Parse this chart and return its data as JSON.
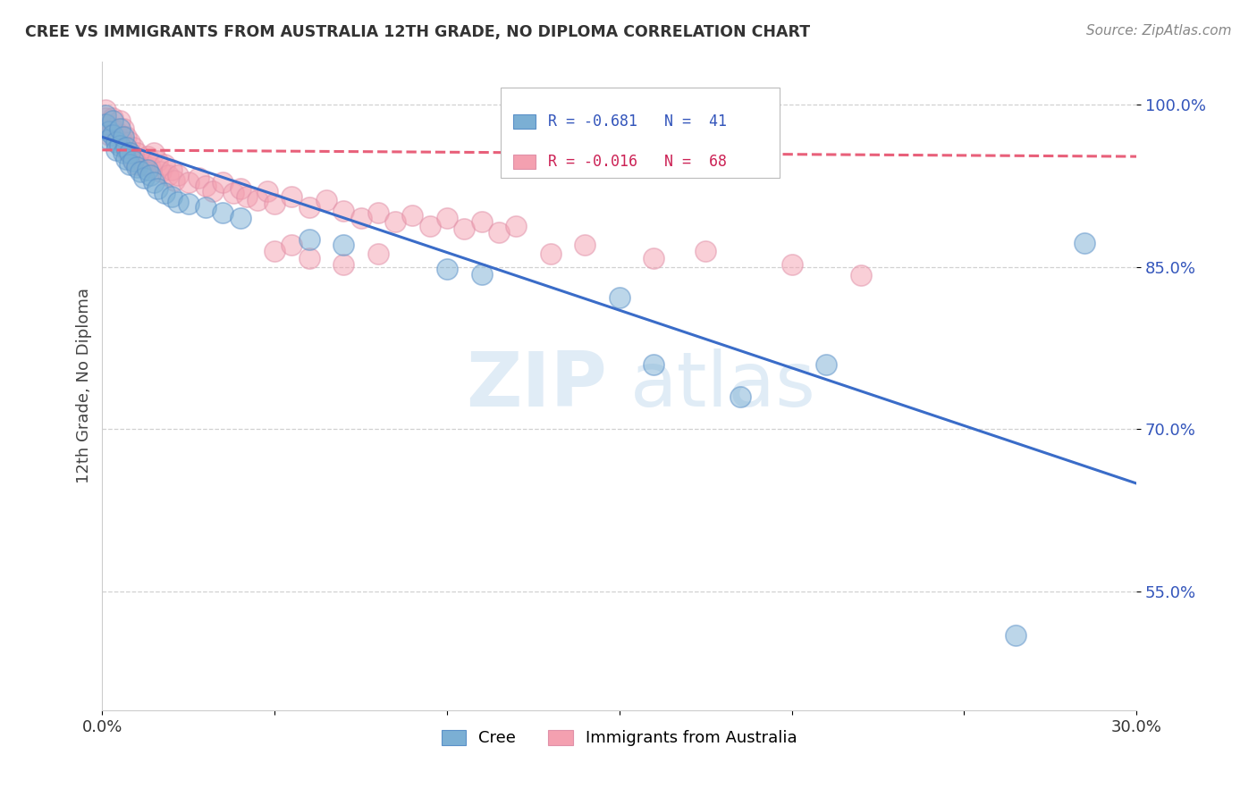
{
  "title": "CREE VS IMMIGRANTS FROM AUSTRALIA 12TH GRADE, NO DIPLOMA CORRELATION CHART",
  "source": "Source: ZipAtlas.com",
  "ylabel": "12th Grade, No Diploma",
  "x_min": 0.0,
  "x_max": 0.3,
  "y_min": 0.44,
  "y_max": 1.04,
  "x_ticks": [
    0.0,
    0.05,
    0.1,
    0.15,
    0.2,
    0.25,
    0.3
  ],
  "y_ticks": [
    0.55,
    0.7,
    0.85,
    1.0
  ],
  "y_tick_labels": [
    "55.0%",
    "70.0%",
    "85.0%",
    "100.0%"
  ],
  "blue_color": "#7BAFD4",
  "pink_color": "#F4A0B0",
  "blue_line_color": "#3A6CC8",
  "pink_line_color": "#E8607A",
  "blue_trend_x": [
    0.0,
    0.3
  ],
  "blue_trend_y": [
    0.97,
    0.65
  ],
  "pink_trend_x": [
    0.0,
    0.3
  ],
  "pink_trend_y": [
    0.958,
    0.952
  ],
  "blue_points": [
    [
      0.001,
      0.99
    ],
    [
      0.001,
      0.982
    ],
    [
      0.002,
      0.975
    ],
    [
      0.002,
      0.968
    ],
    [
      0.003,
      0.985
    ],
    [
      0.003,
      0.972
    ],
    [
      0.004,
      0.965
    ],
    [
      0.004,
      0.958
    ],
    [
      0.005,
      0.978
    ],
    [
      0.005,
      0.962
    ],
    [
      0.006,
      0.97
    ],
    [
      0.006,
      0.955
    ],
    [
      0.007,
      0.96
    ],
    [
      0.007,
      0.95
    ],
    [
      0.008,
      0.955
    ],
    [
      0.008,
      0.945
    ],
    [
      0.009,
      0.948
    ],
    [
      0.01,
      0.942
    ],
    [
      0.011,
      0.938
    ],
    [
      0.012,
      0.932
    ],
    [
      0.013,
      0.94
    ],
    [
      0.014,
      0.935
    ],
    [
      0.015,
      0.928
    ],
    [
      0.016,
      0.922
    ],
    [
      0.018,
      0.918
    ],
    [
      0.02,
      0.915
    ],
    [
      0.022,
      0.91
    ],
    [
      0.025,
      0.908
    ],
    [
      0.03,
      0.905
    ],
    [
      0.035,
      0.9
    ],
    [
      0.04,
      0.895
    ],
    [
      0.06,
      0.875
    ],
    [
      0.07,
      0.87
    ],
    [
      0.1,
      0.848
    ],
    [
      0.11,
      0.843
    ],
    [
      0.15,
      0.822
    ],
    [
      0.16,
      0.76
    ],
    [
      0.185,
      0.73
    ],
    [
      0.21,
      0.76
    ],
    [
      0.265,
      0.51
    ],
    [
      0.285,
      0.872
    ]
  ],
  "pink_points": [
    [
      0.001,
      0.995
    ],
    [
      0.001,
      0.988
    ],
    [
      0.002,
      0.98
    ],
    [
      0.002,
      0.972
    ],
    [
      0.003,
      0.988
    ],
    [
      0.003,
      0.978
    ],
    [
      0.004,
      0.975
    ],
    [
      0.004,
      0.968
    ],
    [
      0.005,
      0.985
    ],
    [
      0.005,
      0.972
    ],
    [
      0.006,
      0.978
    ],
    [
      0.006,
      0.965
    ],
    [
      0.007,
      0.97
    ],
    [
      0.007,
      0.958
    ],
    [
      0.008,
      0.965
    ],
    [
      0.008,
      0.955
    ],
    [
      0.009,
      0.96
    ],
    [
      0.009,
      0.95
    ],
    [
      0.01,
      0.955
    ],
    [
      0.01,
      0.945
    ],
    [
      0.011,
      0.95
    ],
    [
      0.012,
      0.945
    ],
    [
      0.013,
      0.952
    ],
    [
      0.014,
      0.942
    ],
    [
      0.015,
      0.955
    ],
    [
      0.016,
      0.948
    ],
    [
      0.017,
      0.938
    ],
    [
      0.018,
      0.945
    ],
    [
      0.019,
      0.935
    ],
    [
      0.02,
      0.94
    ],
    [
      0.021,
      0.93
    ],
    [
      0.022,
      0.935
    ],
    [
      0.025,
      0.928
    ],
    [
      0.028,
      0.932
    ],
    [
      0.03,
      0.925
    ],
    [
      0.032,
      0.92
    ],
    [
      0.035,
      0.928
    ],
    [
      0.038,
      0.918
    ],
    [
      0.04,
      0.922
    ],
    [
      0.042,
      0.915
    ],
    [
      0.045,
      0.912
    ],
    [
      0.048,
      0.92
    ],
    [
      0.05,
      0.908
    ],
    [
      0.055,
      0.915
    ],
    [
      0.06,
      0.905
    ],
    [
      0.065,
      0.912
    ],
    [
      0.07,
      0.902
    ],
    [
      0.075,
      0.895
    ],
    [
      0.08,
      0.9
    ],
    [
      0.085,
      0.892
    ],
    [
      0.09,
      0.898
    ],
    [
      0.095,
      0.888
    ],
    [
      0.1,
      0.895
    ],
    [
      0.105,
      0.885
    ],
    [
      0.11,
      0.892
    ],
    [
      0.115,
      0.882
    ],
    [
      0.12,
      0.888
    ],
    [
      0.05,
      0.865
    ],
    [
      0.06,
      0.858
    ],
    [
      0.07,
      0.852
    ],
    [
      0.055,
      0.87
    ],
    [
      0.08,
      0.862
    ],
    [
      0.13,
      0.862
    ],
    [
      0.14,
      0.87
    ],
    [
      0.16,
      0.858
    ],
    [
      0.175,
      0.865
    ],
    [
      0.2,
      0.852
    ],
    [
      0.22,
      0.842
    ]
  ]
}
